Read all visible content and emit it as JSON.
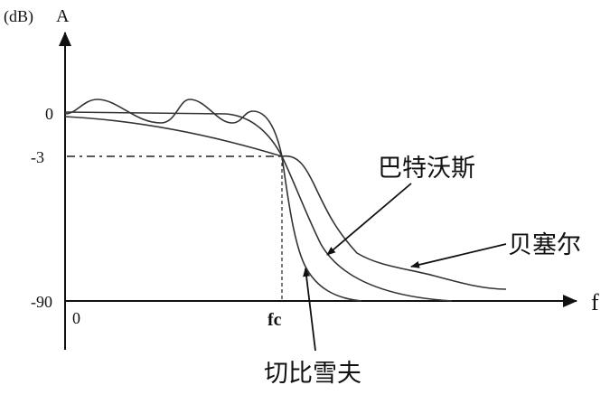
{
  "diagram": {
    "y_axis": {
      "unit_label": "(dB)",
      "label": "A",
      "ticks": [
        "0",
        "-3",
        "-90"
      ]
    },
    "x_axis": {
      "label": "f",
      "origin_label": "0",
      "cutoff_label": "fc"
    },
    "curves": [
      {
        "name": "巴特沃斯"
      },
      {
        "name": "贝塞尔"
      },
      {
        "name": "切比雪夫"
      }
    ]
  }
}
